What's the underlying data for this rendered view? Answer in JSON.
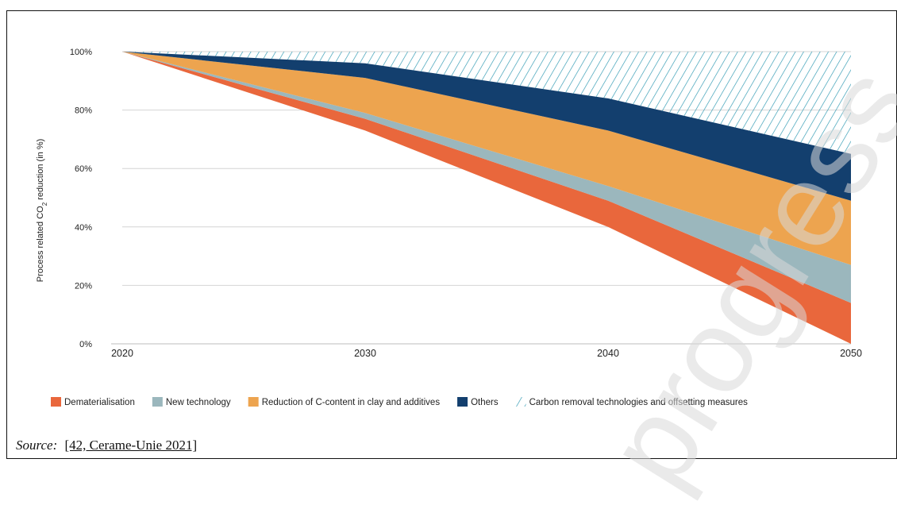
{
  "watermark": "progress",
  "source": {
    "label": "Source:",
    "reference": "[42, Cerame-Unie 2021]"
  },
  "colors": {
    "dematerialisation": "#e9673c",
    "new_technology": "#9bb7bd",
    "reduction_c_content": "#eda44f",
    "others": "#133f6e",
    "carbon_removal": "#2a97b0"
  },
  "chart_data": {
    "type": "area",
    "stacked": true,
    "x": [
      2020,
      2030,
      2040,
      2050
    ],
    "xlabel": "",
    "ylabel_parts": [
      "Process related CO",
      "2",
      " reduction (in %)"
    ],
    "ylim": [
      0,
      100
    ],
    "yticks": [
      "0%",
      "20%",
      "40%",
      "60%",
      "80%",
      "100%"
    ],
    "xticks": [
      "2020",
      "2030",
      "2040",
      "2050"
    ],
    "grid": true,
    "legend_position": "bottom",
    "series": [
      {
        "name": "Dematerialisation",
        "key": "dematerialisation",
        "fill": "solid",
        "values": [
          0,
          4,
          9,
          14
        ]
      },
      {
        "name": "New technology",
        "key": "new_technology",
        "fill": "solid",
        "values": [
          0,
          2,
          5,
          13
        ]
      },
      {
        "name": "Reduction of C-content in clay and additives",
        "key": "reduction_c_content",
        "fill": "solid",
        "values": [
          0,
          12,
          19,
          22
        ]
      },
      {
        "name": "Others",
        "key": "others",
        "fill": "solid",
        "values": [
          0,
          5,
          11,
          16
        ]
      },
      {
        "name": "Carbon removal technologies and offsetting measures",
        "key": "carbon_removal",
        "fill": "hatch",
        "values": [
          0,
          4,
          16,
          35
        ]
      }
    ],
    "baseline": [
      100,
      73,
      40,
      0
    ]
  }
}
